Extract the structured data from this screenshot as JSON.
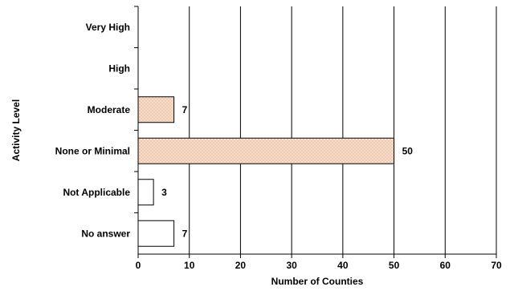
{
  "chart_data": {
    "type": "bar",
    "orientation": "horizontal",
    "categories": [
      "Very High",
      "High",
      "Moderate",
      "None or Minimal",
      "Not Applicable",
      "No answer"
    ],
    "values": [
      null,
      null,
      7,
      50,
      3,
      7
    ],
    "data_labels": [
      "",
      "",
      "7",
      "50",
      "3",
      "7"
    ],
    "xlabel": "Number of Counties",
    "ylabel": "Activity Level",
    "xlim": [
      0,
      70
    ],
    "xticks": [
      "0",
      "10",
      "20",
      "30",
      "40",
      "50",
      "60",
      "70"
    ],
    "grid": "vertical",
    "fills": [
      "hatched",
      "hatched",
      "hatched",
      "hatched",
      "plain",
      "plain"
    ],
    "colors": {
      "hatch_bg": "#fde3cf",
      "hatch_line": "#e0b89e",
      "plain": "#ffffff",
      "stroke": "#000000"
    }
  }
}
